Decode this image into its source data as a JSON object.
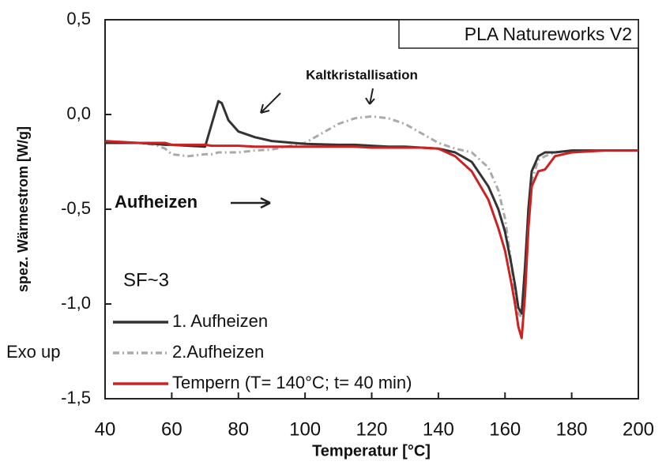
{
  "chart_data": {
    "type": "line",
    "title": "PLA Natureworks V2",
    "x_label": "Temperatur [°C]",
    "y_label": "spez. Wärmestrom [W/g]",
    "annotations": [
      "Kaltkristallisation",
      "Aufheizen",
      "SF~3",
      "Exo up"
    ],
    "x": [
      40,
      50,
      55,
      58,
      60,
      65,
      70,
      72,
      74,
      75,
      77,
      80,
      85,
      90,
      100,
      110,
      115,
      120,
      125,
      130,
      135,
      140,
      145,
      150,
      155,
      158,
      160,
      162,
      163,
      164,
      165,
      166,
      167,
      168,
      170,
      172,
      175,
      180,
      190,
      200
    ],
    "series": [
      {
        "name": "1. Aufheizen",
        "color": "#333333",
        "linestyle": "solid",
        "values": [
          -0.15,
          -0.15,
          -0.155,
          -0.16,
          -0.16,
          -0.165,
          -0.17,
          -0.05,
          0.07,
          0.06,
          -0.03,
          -0.09,
          -0.12,
          -0.14,
          -0.155,
          -0.16,
          -0.16,
          -0.165,
          -0.17,
          -0.17,
          -0.175,
          -0.18,
          -0.2,
          -0.25,
          -0.38,
          -0.5,
          -0.62,
          -0.8,
          -0.9,
          -1.02,
          -1.05,
          -0.8,
          -0.5,
          -0.3,
          -0.22,
          -0.2,
          -0.2,
          -0.19,
          -0.19,
          -0.19
        ]
      },
      {
        "name": "2.Aufheizen",
        "color": "#aaaaaa",
        "linestyle": "dashdot",
        "values": [
          -0.15,
          -0.15,
          -0.16,
          -0.18,
          -0.21,
          -0.22,
          -0.21,
          -0.21,
          -0.2,
          -0.2,
          -0.2,
          -0.2,
          -0.19,
          -0.185,
          -0.15,
          -0.05,
          -0.02,
          -0.01,
          -0.02,
          -0.05,
          -0.1,
          -0.15,
          -0.18,
          -0.2,
          -0.28,
          -0.4,
          -0.55,
          -0.8,
          -0.95,
          -1.05,
          -1.07,
          -0.9,
          -0.6,
          -0.35,
          -0.24,
          -0.22,
          -0.2,
          -0.19,
          -0.19,
          -0.19
        ]
      },
      {
        "name": "Tempern (T= 140°C; t= 40 min)",
        "color": "#cc2222",
        "linestyle": "solid",
        "values": [
          -0.14,
          -0.15,
          -0.15,
          -0.15,
          -0.16,
          -0.16,
          -0.16,
          -0.165,
          -0.165,
          -0.165,
          -0.165,
          -0.165,
          -0.17,
          -0.17,
          -0.17,
          -0.17,
          -0.17,
          -0.175,
          -0.175,
          -0.175,
          -0.175,
          -0.18,
          -0.22,
          -0.3,
          -0.45,
          -0.6,
          -0.72,
          -0.9,
          -1.0,
          -1.12,
          -1.18,
          -0.95,
          -0.6,
          -0.38,
          -0.3,
          -0.29,
          -0.22,
          -0.2,
          -0.19,
          -0.19
        ]
      }
    ],
    "xlim": [
      40,
      200
    ],
    "xticks": [
      40,
      60,
      80,
      100,
      120,
      140,
      160,
      180,
      200
    ],
    "ylim": [
      -1.5,
      0.5
    ],
    "yticks": [
      {
        "value": -1.5,
        "label": "-1,5"
      },
      {
        "value": -1.0,
        "label": "-1,0"
      },
      {
        "value": -0.5,
        "label": "-0,5"
      },
      {
        "value": 0,
        "label": "0,0"
      },
      {
        "value": 0.5,
        "label": "0,5"
      }
    ]
  }
}
